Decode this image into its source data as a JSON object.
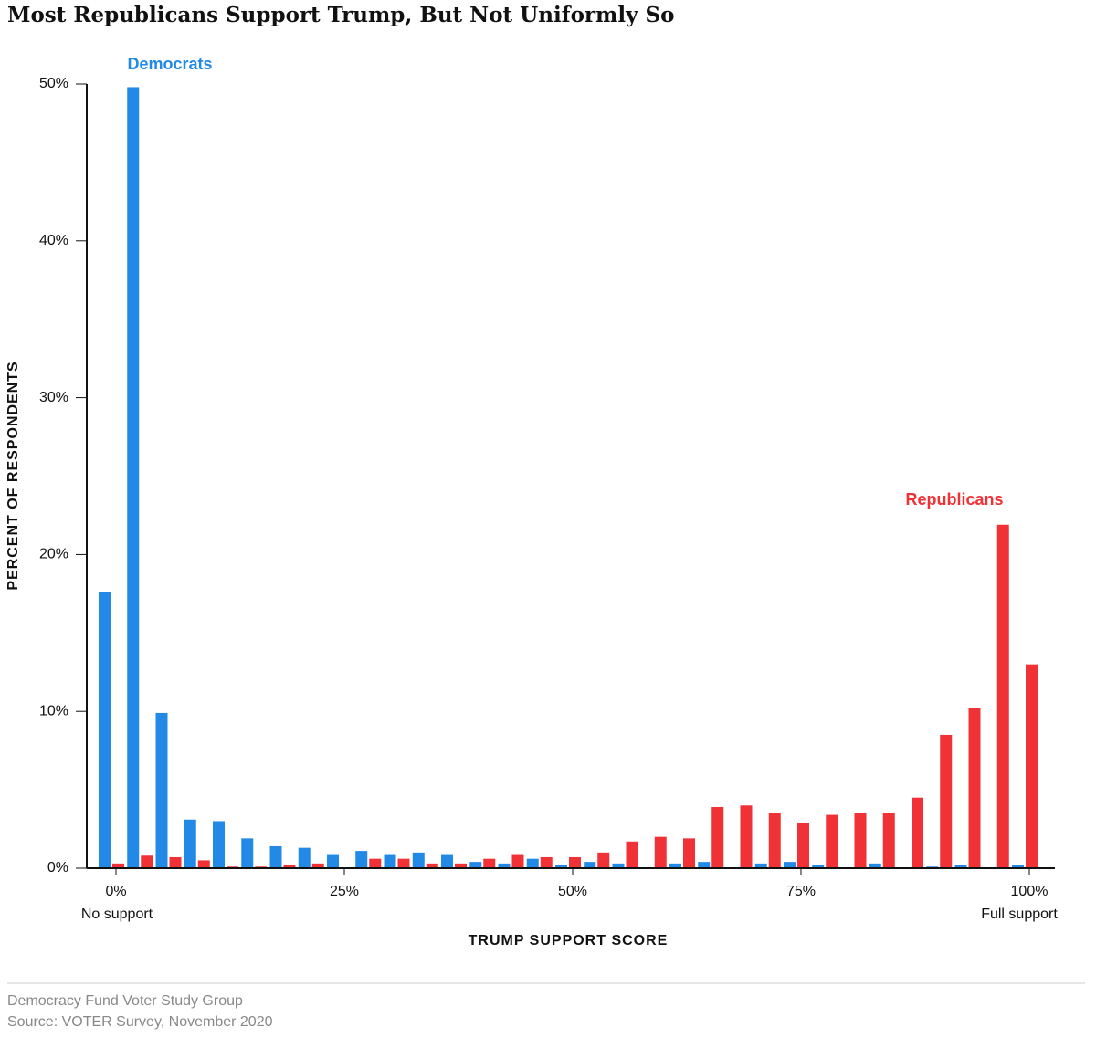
{
  "chart_data": {
    "type": "bar",
    "title": "Most Republicans Support Trump, But Not Uniformly So",
    "x_label": "TRUMP SUPPORT SCORE",
    "y_label": "PERCENT OF RESPONDENTS",
    "x": [
      0,
      3.125,
      6.25,
      9.375,
      12.5,
      15.625,
      18.75,
      21.875,
      25,
      28.125,
      31.25,
      34.375,
      37.5,
      40.625,
      43.75,
      46.875,
      50,
      53.125,
      56.25,
      59.375,
      62.5,
      65.625,
      68.75,
      71.875,
      75,
      78.125,
      81.25,
      84.375,
      87.5,
      90.625,
      93.75,
      96.875,
      100
    ],
    "series": [
      {
        "name": "Democrats",
        "color": "#2389e6",
        "values": [
          17.6,
          49.8,
          9.9,
          3.1,
          3.0,
          1.9,
          1.4,
          1.3,
          0.9,
          1.1,
          0.9,
          1.0,
          0.9,
          0.4,
          0.3,
          0.6,
          0.2,
          0.4,
          0.3,
          0,
          0.3,
          0.4,
          0,
          0.3,
          0.4,
          0.2,
          0,
          0.3,
          0,
          0.1,
          0.2,
          0,
          0.2
        ]
      },
      {
        "name": "Republicans",
        "color": "#f03237",
        "values": [
          0.3,
          0.8,
          0.7,
          0.5,
          0.1,
          0.1,
          0.2,
          0.3,
          0,
          0.6,
          0.6,
          0.3,
          0.3,
          0.6,
          0.9,
          0.7,
          0.7,
          1.0,
          1.7,
          2.0,
          1.9,
          3.9,
          4.0,
          3.5,
          2.9,
          3.4,
          3.5,
          3.5,
          4.5,
          8.5,
          10.2,
          21.9,
          13.0
        ]
      }
    ],
    "xlim": [
      -3.2,
      102.8
    ],
    "xticks": [
      {
        "value": 0,
        "label": "0%"
      },
      {
        "value": 25,
        "label": "25%"
      },
      {
        "value": 50,
        "label": "50%"
      },
      {
        "value": 75,
        "label": "75%"
      },
      {
        "value": 100,
        "label": "100%"
      }
    ],
    "ylim": [
      0,
      50
    ],
    "yticks": [
      {
        "value": 0,
        "label": "0%"
      },
      {
        "value": 10,
        "label": "10%"
      },
      {
        "value": 20,
        "label": "20%"
      },
      {
        "value": 30,
        "label": "30%"
      },
      {
        "value": 40,
        "label": "40%"
      },
      {
        "value": 50,
        "label": "50%"
      }
    ],
    "annotations": [
      "No support",
      "Full support"
    ],
    "footer": [
      "Democracy Fund Voter Study Group",
      "Source: VOTER Survey, November 2020"
    ]
  }
}
